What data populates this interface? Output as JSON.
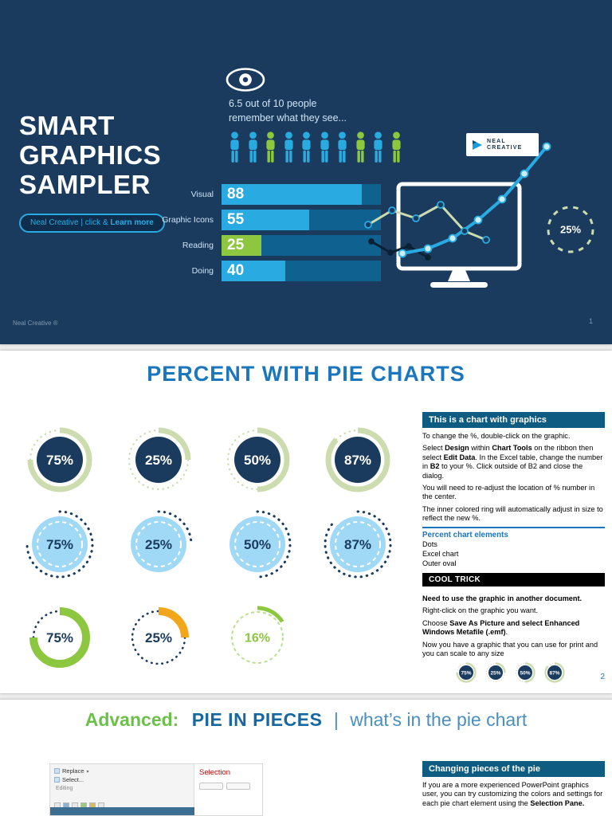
{
  "colors": {
    "navy": "#1a3b5e",
    "blue": "#29abe2",
    "green": "#8dc63f",
    "sage": "#ccdcae",
    "bar_track": "#0f628f",
    "lightblue_fill": "#9fd9f6",
    "yellow": "#f2a71b",
    "lightgreen": "#b9e08e",
    "title_blue": "#1b76bd",
    "sidebar_header": "#0f5c82",
    "heading_green": "#6cc04a",
    "heading_blue": "#1767a0",
    "heading_teal": "#4b8fbe",
    "label_light": "#cfe4f6",
    "footer_gray": "#8299ad"
  },
  "slide1": {
    "title_lines": [
      "SMART",
      "GRAPHICS",
      "SAMPLER"
    ],
    "button": {
      "prefix": "Neal Creative  | click & ",
      "bold": "Learn more"
    },
    "caption_lines": [
      "6.5 out of 10 people",
      "remember what they see..."
    ],
    "people": [
      "blue",
      "blue",
      "green",
      "blue",
      "blue",
      "blue",
      "blue",
      "green",
      "blue",
      "green"
    ],
    "bar_chart": {
      "max": 100,
      "rows": [
        {
          "label": "Visual",
          "value": 88,
          "color": "blue"
        },
        {
          "label": "Graphic Icons",
          "value": 55,
          "color": "blue"
        },
        {
          "label": "Reading",
          "value": 25,
          "color": "green"
        },
        {
          "label": "Doing",
          "value": 40,
          "color": "blue"
        }
      ]
    },
    "donut_label": "25%",
    "logo_lines": [
      "NEAL",
      "CREATIVE"
    ],
    "footer": "Neal Creative ®",
    "page_number": "1"
  },
  "slide2": {
    "title": "PERCENT WITH PIE CHARTS",
    "donut_rows": [
      {
        "theme": "navy",
        "items": [
          {
            "pct": 75,
            "label": "75%"
          },
          {
            "pct": 25,
            "label": "25%"
          },
          {
            "pct": 50,
            "label": "50%"
          },
          {
            "pct": 87,
            "label": "87%"
          }
        ]
      },
      {
        "theme": "lightblue",
        "items": [
          {
            "pct": 75,
            "label": "75%"
          },
          {
            "pct": 25,
            "label": "25%"
          },
          {
            "pct": 50,
            "label": "50%"
          },
          {
            "pct": 87,
            "label": "87%"
          }
        ]
      },
      {
        "theme": "mixed",
        "items": [
          {
            "pct": 75,
            "label": "75%",
            "theme": "whitegreen"
          },
          {
            "pct": 25,
            "label": "25%",
            "theme": "whiteyellow"
          },
          {
            "pct": 16,
            "label": "16%",
            "theme": "outline"
          }
        ]
      }
    ],
    "sidebar": {
      "header": "This is a chart with graphics",
      "paragraphs": [
        [
          {
            "t": "To change the %, double-click on the graphic."
          }
        ],
        [
          {
            "t": "Select "
          },
          {
            "t": "Design",
            "b": 1
          },
          {
            "t": " within "
          },
          {
            "t": "Chart Tools",
            "b": 1
          },
          {
            "t": " on the ribbon then select "
          },
          {
            "t": "Edit Data",
            "b": 1
          },
          {
            "t": ". In the Excel table, change the number in "
          },
          {
            "t": "B2",
            "b": 1
          },
          {
            "t": " to your %. Click outside of B2 and close the dialog."
          }
        ],
        [
          {
            "t": "You will need to re-adjust the location of % number in the center."
          }
        ],
        [
          {
            "t": "The inner colored ring will automatically adjust in size to reflect the new %."
          }
        ]
      ],
      "elements_heading": "Percent chart elements",
      "elements": [
        "Dots",
        "Excel chart",
        "Outer oval"
      ],
      "trick_header": "COOL TRICK",
      "trick_paragraphs": [
        [
          {
            "t": "Need to use the graphic in another document.",
            "b": 1
          }
        ],
        [
          {
            "t": "Right-click on the graphic you want."
          }
        ],
        [
          {
            "t": "Choose "
          },
          {
            "t": "Save As Picture and select Enhanced Windows Metafile (.emf)",
            "b": 1
          },
          {
            "t": "."
          }
        ],
        [
          {
            "t": "Now you have a graphic that you can use for print and you can scale to any size"
          }
        ]
      ],
      "mini_donuts": [
        {
          "pct": 75,
          "label": "75%"
        },
        {
          "pct": 25,
          "label": "25%"
        },
        {
          "pct": 50,
          "label": "50%"
        },
        {
          "pct": 87,
          "label": "87%"
        }
      ]
    },
    "page_number": "2"
  },
  "slide3": {
    "heading": {
      "advanced": "Advanced:",
      "main": "PIE IN PIECES",
      "separator": "|",
      "tail": "what’s in the pie chart"
    },
    "screenshot": {
      "replace": "Replace",
      "select": "Select...",
      "editing": "Editing",
      "selection": "Selection"
    },
    "sidebar": {
      "header": "Changing pieces of the pie",
      "paragraphs": [
        [
          {
            "t": "If you are a more experienced PowerPoint graphics user, you can try customizing the colors and settings for each pie chart element using the "
          },
          {
            "t": "Selection Pane.",
            "b": 1
          }
        ]
      ]
    }
  }
}
